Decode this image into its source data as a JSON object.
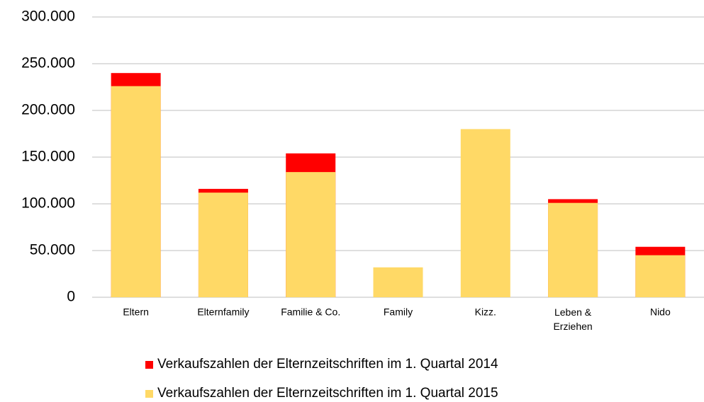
{
  "chart_data": {
    "type": "bar",
    "categories": [
      "Eltern",
      "Elternfamily",
      "Familie & Co.",
      "Family",
      "Kizz.",
      "Leben & Erziehen",
      "Nido"
    ],
    "series": [
      {
        "name": "Verkaufszahlen der Elternzeitschriften im 1. Quartal 2014",
        "color": "#ff0000",
        "values": [
          240000,
          116000,
          154000,
          null,
          null,
          105000,
          54000
        ]
      },
      {
        "name": "Verkaufszahlen der Elternzeitschriften im 1. Quartal 2015",
        "color": "#ffd966",
        "values": [
          226000,
          112000,
          134000,
          32000,
          180000,
          101000,
          45000
        ]
      }
    ],
    "ylim": [
      0,
      300000
    ],
    "yticks": [
      0,
      {
        "value": 50000,
        "label": "50.000"
      },
      {
        "value": 100000,
        "label": "100.000"
      },
      {
        "value": 150000,
        "label": "150.000"
      },
      {
        "value": 200000,
        "label": "200.000"
      },
      {
        "value": 250000,
        "label": "250.000"
      },
      {
        "value": 300000,
        "label": "300.000"
      }
    ],
    "grid": true,
    "legend": "bottom"
  }
}
